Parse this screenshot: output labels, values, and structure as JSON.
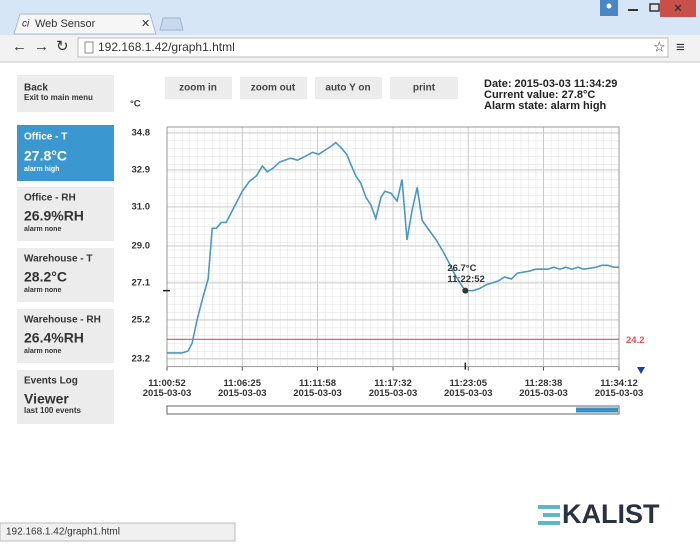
{
  "browser": {
    "tab_title": "Web Sensor",
    "url": "192.168.1.42/graph1.html",
    "status_url": "192.168.1.42/graph1.html"
  },
  "sidebar": [
    {
      "title": "Back",
      "subtitle": "Exit to main menu"
    },
    {
      "title": "Office - T",
      "value": "27.8°C",
      "status": "alarm high"
    },
    {
      "title": "Office - RH",
      "value": "26.9%RH",
      "status": "alarm none"
    },
    {
      "title": "Warehouse - T",
      "value": "28.2°C",
      "status": "alarm none"
    },
    {
      "title": "Warehouse - RH",
      "value": "26.4%RH",
      "status": "alarm none"
    },
    {
      "title": "Events Log",
      "value": "Viewer",
      "status": "last 100 events"
    }
  ],
  "toolbar": [
    "zoom in",
    "zoom out",
    "auto Y on",
    "print"
  ],
  "info": [
    "Date: 2015-03-03 11:34:29",
    "Current value: 27.8°C",
    "Alarm state: alarm high"
  ],
  "logo": "KALIST",
  "chart_data": {
    "type": "line",
    "ylabel": "°C",
    "color": "#4a98c0",
    "grid": true,
    "xlim": [
      "2015-03-03 11:00:52",
      "2015-03-03 11:34:12"
    ],
    "ylim": [
      22.8,
      35.1
    ],
    "yticks": [
      23.2,
      25.2,
      27.1,
      {
        "value": 29,
        "label": "29.0"
      },
      {
        "value": 31,
        "label": "31.0"
      },
      32.9,
      34.8
    ],
    "xticks": [
      {
        "value": "2015-03-03 11:00:52",
        "label": "11:00:52",
        "date": "2015-03-03"
      },
      {
        "value": "2015-03-03 11:06:25",
        "label": "11:06:25",
        "date": "2015-03-03"
      },
      {
        "value": "2015-03-03 11:11:58",
        "label": "11:11:58",
        "date": "2015-03-03"
      },
      {
        "value": "2015-03-03 11:17:32",
        "label": "11:17:32",
        "date": "2015-03-03"
      },
      {
        "value": "2015-03-03 11:23:05",
        "label": "11:23:05",
        "date": "2015-03-03"
      },
      {
        "value": "2015-03-03 11:28:38",
        "label": "11:28:38",
        "date": "2015-03-03"
      },
      {
        "value": "2015-03-03 11:34:12",
        "label": "11:34:12",
        "date": "2015-03-03"
      }
    ],
    "x": [
      "2015-03-03 11:00:52",
      "2015-03-03 11:01:59",
      "2015-03-03 11:02:25",
      "2015-03-03 11:02:43",
      "2015-03-03 11:03:05",
      "2015-03-03 11:03:32",
      "2015-03-03 11:03:54",
      "2015-03-03 11:04:12",
      "2015-03-03 11:04:30",
      "2015-03-03 11:04:52",
      "2015-03-03 11:05:14",
      "2015-03-03 11:05:36",
      "2015-03-03 11:06:03",
      "2015-03-03 11:06:25",
      "2015-03-03 11:06:56",
      "2015-03-03 11:07:28",
      "2015-03-03 11:07:54",
      "2015-03-03 11:08:16",
      "2015-03-03 11:08:43",
      "2015-03-03 11:09:10",
      "2015-03-03 11:09:59",
      "2015-03-03 11:10:30",
      "2015-03-03 11:11:05",
      "2015-03-03 11:11:36",
      "2015-03-03 11:12:03",
      "2015-03-03 11:12:30",
      "2015-03-03 11:12:56",
      "2015-03-03 11:13:19",
      "2015-03-03 11:13:45",
      "2015-03-03 11:14:07",
      "2015-03-03 11:14:25",
      "2015-03-03 11:14:47",
      "2015-03-03 11:15:10",
      "2015-03-03 11:15:32",
      "2015-03-03 11:15:54",
      "2015-03-03 11:16:16",
      "2015-03-03 11:16:39",
      "2015-03-03 11:16:56",
      "2015-03-03 11:17:23",
      "2015-03-03 11:17:50",
      "2015-03-03 11:18:12",
      "2015-03-03 11:18:34",
      "2015-03-03 11:18:56",
      "2015-03-03 11:19:19",
      "2015-03-03 11:19:41",
      "2015-03-03 11:20:12",
      "2015-03-03 11:20:43",
      "2015-03-03 11:21:14",
      "2015-03-03 11:21:41",
      "2015-03-03 11:22:07",
      "2015-03-03 11:22:34",
      "2015-03-03 11:22:52",
      "2015-03-03 11:23:27",
      "2015-03-03 11:23:54",
      "2015-03-03 11:24:25",
      "2015-03-03 11:25:19",
      "2015-03-03 11:25:45",
      "2015-03-03 11:26:16",
      "2015-03-03 11:26:43",
      "2015-03-03 11:27:36",
      "2015-03-03 11:28:03",
      "2015-03-03 11:28:56",
      "2015-03-03 11:29:23",
      "2015-03-03 11:29:50",
      "2015-03-03 11:30:16",
      "2015-03-03 11:30:43",
      "2015-03-03 11:31:10",
      "2015-03-03 11:31:36",
      "2015-03-03 11:32:30",
      "2015-03-03 11:32:56",
      "2015-03-03 11:33:23",
      "2015-03-03 11:33:50",
      "2015-03-03 11:34:12"
    ],
    "values": [
      23.5,
      23.5,
      23.6,
      24.0,
      25.2,
      26.4,
      27.3,
      29.9,
      29.9,
      30.2,
      30.2,
      30.7,
      31.3,
      31.8,
      32.3,
      32.6,
      33.1,
      32.8,
      33.0,
      33.3,
      33.5,
      33.4,
      33.6,
      33.8,
      33.7,
      33.9,
      34.1,
      34.3,
      34.0,
      33.7,
      33.2,
      32.6,
      32.2,
      31.5,
      31.1,
      30.4,
      31.5,
      31.8,
      31.7,
      31.3,
      32.4,
      29.3,
      30.8,
      32.0,
      30.3,
      29.8,
      29.3,
      28.7,
      28.1,
      27.5,
      27.0,
      26.7,
      26.7,
      26.8,
      27.0,
      27.2,
      27.4,
      27.3,
      27.6,
      27.7,
      27.8,
      27.8,
      27.9,
      27.8,
      27.9,
      27.8,
      27.9,
      27.8,
      27.9,
      28.0,
      28.0,
      27.9,
      27.9
    ],
    "alarm_line": {
      "value": 24.2,
      "color": "#e05050"
    },
    "marker": {
      "x": "2015-03-03 11:22:52",
      "y": 26.7,
      "value_label": "26.7°C",
      "time_label": "11:22:52"
    }
  }
}
